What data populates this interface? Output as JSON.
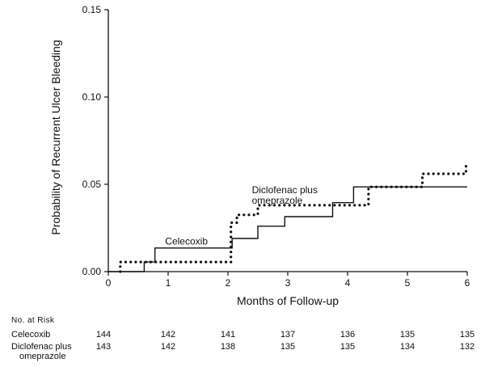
{
  "chart_data": {
    "type": "line",
    "chart_style": "step",
    "ylabel": "Probability of Recurrent Ulcer Bleeding",
    "xlabel": "Months of Follow-up",
    "xlim": [
      0,
      6
    ],
    "ylim": [
      0,
      0.15
    ],
    "x_ticks": [
      0,
      1,
      2,
      3,
      4,
      5,
      6
    ],
    "y_ticks": [
      0.0,
      0.05,
      0.1,
      0.15
    ],
    "y_tick_labels": [
      "0.00",
      "0.05",
      "0.10",
      "0.15"
    ],
    "series": [
      {
        "name": "Celecoxib",
        "label_lines": [
          "Celecoxib"
        ],
        "label_anchor": {
          "x": 0.95,
          "y": 0.0155
        },
        "line_style": "solid",
        "points": [
          [
            0,
            0
          ],
          [
            0.6,
            0
          ],
          [
            0.6,
            0.0055
          ],
          [
            0.78,
            0.0055
          ],
          [
            0.78,
            0.0135
          ],
          [
            2.07,
            0.0135
          ],
          [
            2.07,
            0.019
          ],
          [
            2.5,
            0.019
          ],
          [
            2.5,
            0.026
          ],
          [
            2.95,
            0.026
          ],
          [
            2.95,
            0.0315
          ],
          [
            3.75,
            0.0315
          ],
          [
            3.75,
            0.0395
          ],
          [
            4.1,
            0.0395
          ],
          [
            4.1,
            0.0485
          ],
          [
            6.0,
            0.0485
          ]
        ]
      },
      {
        "name": "Diclofenac plus omeprazole",
        "label_lines": [
          "Diclofenac plus",
          "omeprazole"
        ],
        "label_anchor": {
          "x": 2.4,
          "y": 0.045
        },
        "line_style": "dotted",
        "points": [
          [
            0.2,
            0
          ],
          [
            0.2,
            0.0055
          ],
          [
            2.05,
            0.0055
          ],
          [
            2.05,
            0.028
          ],
          [
            2.15,
            0.028
          ],
          [
            2.15,
            0.0325
          ],
          [
            2.5,
            0.0325
          ],
          [
            2.5,
            0.038
          ],
          [
            4.35,
            0.038
          ],
          [
            4.35,
            0.0485
          ],
          [
            5.25,
            0.0485
          ],
          [
            5.25,
            0.056
          ],
          [
            5.98,
            0.056
          ],
          [
            5.98,
            0.0625
          ]
        ]
      }
    ]
  },
  "risk_table": {
    "header": "No. at Risk",
    "months": [
      0,
      1,
      2,
      3,
      4,
      5,
      6
    ],
    "rows": [
      {
        "label": "Celecoxib",
        "label_lines": [
          "Celecoxib"
        ],
        "values": [
          "144",
          "142",
          "141",
          "137",
          "136",
          "135",
          "135"
        ]
      },
      {
        "label": "Diclofenac plus omeprazole",
        "label_lines": [
          "Diclofenac plus",
          "omeprazole"
        ],
        "values": [
          "143",
          "142",
          "138",
          "135",
          "135",
          "134",
          "132"
        ]
      }
    ]
  }
}
